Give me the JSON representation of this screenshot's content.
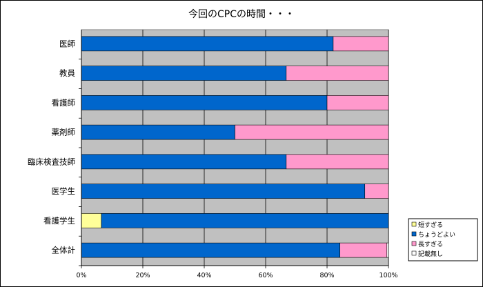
{
  "chart_data": {
    "type": "bar",
    "orientation": "horizontal",
    "stacked": "percent",
    "title": "今回のCPCの時間・・・",
    "categories": [
      "医師",
      "教員",
      "看護師",
      "薬剤師",
      "臨床検査技師",
      "医学生",
      "看護学生",
      "全体計"
    ],
    "series": [
      {
        "name": "短すぎる",
        "color": "#ffff99",
        "values": [
          0,
          0,
          0,
          0,
          0,
          0,
          6.5,
          0
        ]
      },
      {
        "name": "ちょうどよい",
        "color": "#0066cc",
        "values": [
          82,
          66.7,
          80,
          50,
          66.7,
          92.3,
          93.5,
          84.2
        ]
      },
      {
        "name": "長すぎる",
        "color": "#ff99cc",
        "values": [
          18,
          33.3,
          20,
          50,
          33.3,
          7.7,
          0,
          15.3
        ]
      },
      {
        "name": "記載無し",
        "color": "#ffffff",
        "values": [
          0,
          0,
          0,
          0,
          0,
          0,
          0,
          0.5
        ]
      }
    ],
    "xlim": [
      0,
      100
    ],
    "xticks": [
      "0%",
      "20%",
      "40%",
      "60%",
      "80%",
      "100%"
    ],
    "plot_background": "#c0c0c0",
    "grid": true,
    "legend_position": "bottom-right"
  }
}
